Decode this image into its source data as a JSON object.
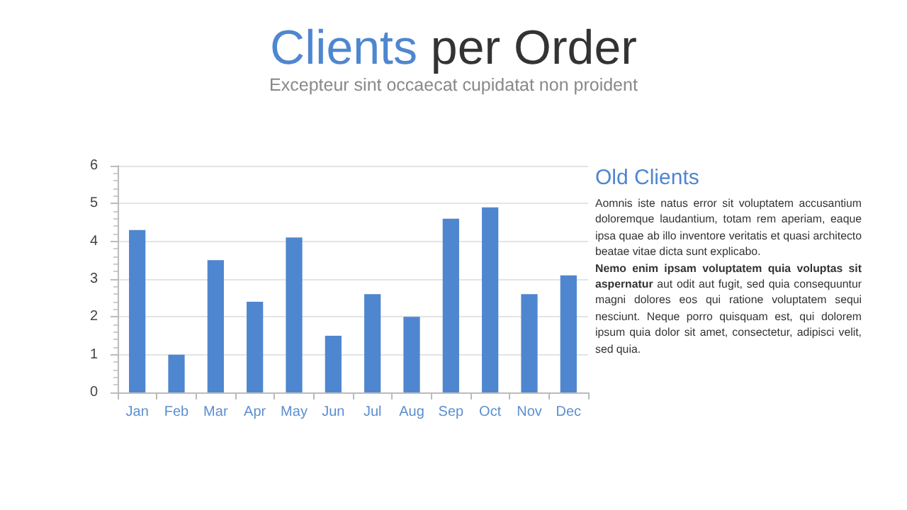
{
  "chart_data": {
    "type": "bar",
    "title": "Clients per Order",
    "subtitle": "Excepteur sint occaecat cupidatat non proident",
    "categories": [
      "Jan",
      "Feb",
      "Mar",
      "Apr",
      "May",
      "Jun",
      "Jul",
      "Aug",
      "Sep",
      "Oct",
      "Nov",
      "Dec"
    ],
    "values": [
      4.3,
      1.0,
      3.5,
      2.4,
      4.1,
      1.5,
      2.6,
      2.0,
      4.6,
      4.9,
      2.6,
      3.1
    ],
    "color": "#4f86d0",
    "ylim": [
      0,
      6
    ],
    "yticks": [
      0,
      1,
      2,
      3,
      4,
      5,
      6
    ],
    "grid": "y",
    "annotations": [
      "Old Clients",
      "Aomnis iste natus error sit voluptatem accusantium doloremque laudantium, totam rem aperiam, eaque ipsa quae ab illo inventore veritatis et quasi architecto beatae vitae dicta sunt explicabo.",
      "Nemo enim ipsam voluptatem quia voluptas sit aspernatur",
      "aut odit aut fugit, sed quia consequuntur magni dolores eos qui ratione voluptatem sequi nesciunt. Neque porro quisquam est, qui dolorem ipsum quia dolor sit amet, consectetur, adipisci velit, sed quia."
    ]
  }
}
